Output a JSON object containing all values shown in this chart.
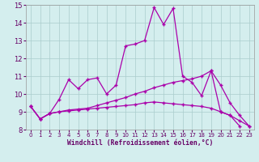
{
  "xlabel": "Windchill (Refroidissement éolien,°C)",
  "bg_color": "#d4eeee",
  "grid_color": "#aacccc",
  "line_color": "#aa00aa",
  "x_hours": [
    0,
    1,
    2,
    3,
    4,
    5,
    6,
    7,
    8,
    9,
    10,
    11,
    12,
    13,
    14,
    15,
    16,
    17,
    18,
    19,
    20,
    21,
    22,
    23
  ],
  "series1": [
    9.3,
    8.6,
    8.9,
    9.7,
    10.8,
    10.3,
    10.8,
    10.9,
    10.0,
    10.5,
    12.7,
    12.8,
    13.0,
    14.85,
    13.9,
    14.8,
    11.0,
    10.65,
    9.9,
    11.3,
    9.0,
    8.8,
    8.2,
    null
  ],
  "series2": [
    9.3,
    8.6,
    8.9,
    9.0,
    9.1,
    9.15,
    9.2,
    9.35,
    9.5,
    9.65,
    9.8,
    10.0,
    10.15,
    10.35,
    10.5,
    10.65,
    10.75,
    10.85,
    11.0,
    11.3,
    10.5,
    9.5,
    8.8,
    8.2
  ],
  "series3": [
    9.3,
    8.6,
    8.9,
    9.0,
    9.05,
    9.1,
    9.15,
    9.2,
    9.25,
    9.3,
    9.35,
    9.4,
    9.5,
    9.55,
    9.5,
    9.45,
    9.4,
    9.35,
    9.3,
    9.2,
    9.0,
    8.8,
    8.5,
    8.2
  ],
  "ylim": [
    8,
    15
  ],
  "xlim": [
    0,
    23
  ]
}
